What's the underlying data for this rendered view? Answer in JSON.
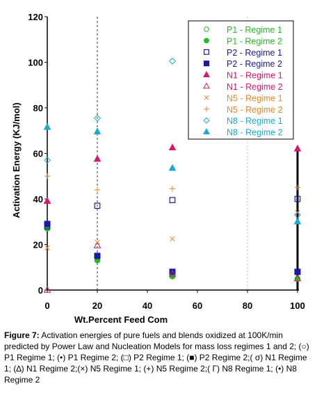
{
  "chart_data": {
    "type": "scatter",
    "title": "",
    "xlabel": "Wt.Percent Feed Com",
    "ylabel": "Activation Energy (KJ/mol)",
    "xlim": [
      0,
      100
    ],
    "ylim": [
      0,
      120
    ],
    "xticks": [
      0,
      20,
      40,
      60,
      80,
      100
    ],
    "yticks": [
      0,
      20,
      40,
      60,
      80,
      100,
      120
    ],
    "vertical_reference_lines": [
      20,
      80
    ],
    "legend_position": "top-right",
    "series": [
      {
        "name": "P1 - Regime 1",
        "marker": "circle-open",
        "color": "#22bb22",
        "points": [
          {
            "x": 0,
            "y": 27
          },
          {
            "x": 20,
            "y": 14
          },
          {
            "x": 50,
            "y": 6
          },
          {
            "x": 100,
            "y": 5
          }
        ]
      },
      {
        "name": "P1 - Regime 2",
        "marker": "circle-filled",
        "color": "#22bb22",
        "points": [
          {
            "x": 0,
            "y": 27
          },
          {
            "x": 20,
            "y": 13
          },
          {
            "x": 50,
            "y": 6
          },
          {
            "x": 100,
            "y": 5
          }
        ]
      },
      {
        "name": "P2 - Regime 1",
        "marker": "square-open",
        "color": "#1a1aa6",
        "points": [
          {
            "x": 0,
            "y": 28
          },
          {
            "x": 20,
            "y": 37
          },
          {
            "x": 50,
            "y": 39.5
          },
          {
            "x": 100,
            "y": 40
          }
        ]
      },
      {
        "name": "P2 - Regime 2",
        "marker": "square-filled",
        "color": "#1a1aa6",
        "points": [
          {
            "x": 0,
            "y": 29
          },
          {
            "x": 20,
            "y": 15
          },
          {
            "x": 50,
            "y": 8
          },
          {
            "x": 100,
            "y": 8
          }
        ]
      },
      {
        "name": "N1 - Regime 1",
        "marker": "triangle-filled",
        "color": "#d6186e",
        "points": [
          {
            "x": 0,
            "y": 39
          },
          {
            "x": 20,
            "y": 57.5
          },
          {
            "x": 50,
            "y": 62.5
          },
          {
            "x": 100,
            "y": 62
          }
        ]
      },
      {
        "name": "N1 - Regime 2",
        "marker": "triangle-open",
        "color": "#d6186e",
        "points": [
          {
            "x": 0,
            "y": 0
          },
          {
            "x": 20,
            "y": 19.5
          },
          {
            "x": 50,
            "y": 7
          },
          {
            "x": 100,
            "y": 5
          }
        ]
      },
      {
        "name": "N5 - Regime 1",
        "marker": "x",
        "color": "#e8852a",
        "points": [
          {
            "x": 0,
            "y": 18.5
          },
          {
            "x": 20,
            "y": 21
          },
          {
            "x": 50,
            "y": 22.5
          },
          {
            "x": 100,
            "y": 34
          }
        ]
      },
      {
        "name": "N5 - Regime 2",
        "marker": "plus",
        "color": "#e8852a",
        "points": [
          {
            "x": 0,
            "y": 50
          },
          {
            "x": 20,
            "y": 44
          },
          {
            "x": 50,
            "y": 44.5
          },
          {
            "x": 100,
            "y": 45
          }
        ]
      },
      {
        "name": "N8 - Regime 1",
        "marker": "diamond-open",
        "color": "#1aa8d8",
        "points": [
          {
            "x": 0,
            "y": 57
          },
          {
            "x": 20,
            "y": 75.5
          },
          {
            "x": 50,
            "y": 100.5
          },
          {
            "x": 100,
            "y": 33
          }
        ]
      },
      {
        "name": "N8 - Regime 2",
        "marker": "triangle-filled",
        "color": "#1aa8d8",
        "points": [
          {
            "x": 0,
            "y": 71.5
          },
          {
            "x": 20,
            "y": 69.5
          },
          {
            "x": 50,
            "y": 53.5
          },
          {
            "x": 100,
            "y": 30
          }
        ]
      }
    ]
  },
  "caption": {
    "label": "Figure 7:",
    "text": " Activation energies of pure fuels and blends oxidized at 100K/min predicted by Power Law and Nucleation Models for mass loss regimes 1 and 2; (○) P1 Regime 1; (•) P1 Regime 2; (□) P2 Regime 1; (■) P2 Regime 2;( σ) N1 Regime 1; (∆) N1 Regime 2;(×) N5 Regime 1; (+) N5 Regime 2;( Γ) N8 Regime 1; (•) N8 Regime 2"
  }
}
